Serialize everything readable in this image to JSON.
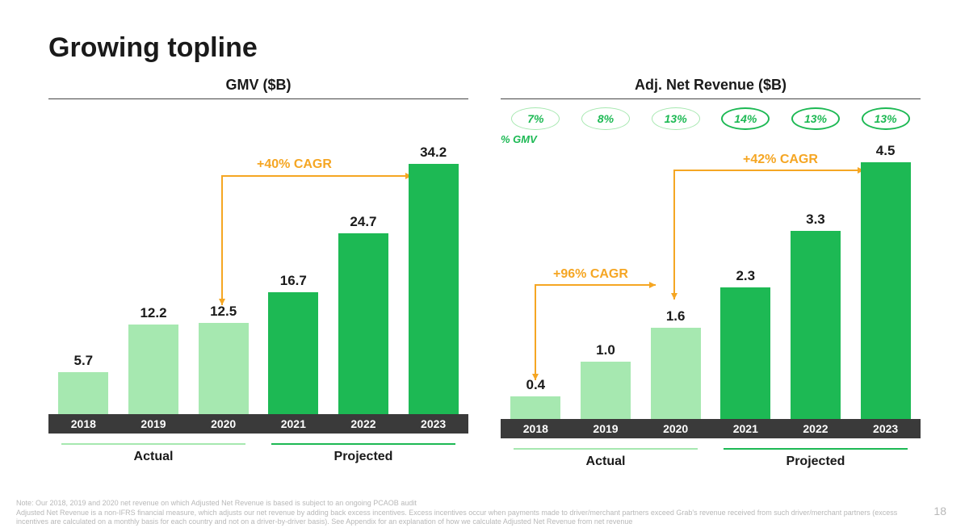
{
  "title": "Growing topline",
  "page_number": "18",
  "colors": {
    "light_green": "#a6e8b0",
    "dark_green": "#1db954",
    "orange": "#f5a623",
    "axis_bg": "#3a3a3a",
    "text": "#1a1a1a",
    "footnote": "#b8b8b8",
    "period_actual": "#a6e8b0",
    "period_projected": "#1db954"
  },
  "left_chart": {
    "title": "GMV ($B)",
    "type": "bar",
    "years": [
      "2018",
      "2019",
      "2020",
      "2021",
      "2022",
      "2023"
    ],
    "values": [
      5.7,
      12.2,
      12.5,
      16.7,
      24.7,
      34.2
    ],
    "value_labels": [
      "5.7",
      "12.2",
      "12.5",
      "16.7",
      "24.7",
      "34.2"
    ],
    "bar_colors": [
      "#a6e8b0",
      "#a6e8b0",
      "#a6e8b0",
      "#1db954",
      "#1db954",
      "#1db954"
    ],
    "ymax": 34.2,
    "cagr": {
      "label": "+40% CAGR",
      "color": "#f5a623"
    },
    "periods": [
      {
        "label": "Actual",
        "color": "#a6e8b0"
      },
      {
        "label": "Projected",
        "color": "#1db954"
      }
    ]
  },
  "right_chart": {
    "title": "Adj. Net Revenue ($B)",
    "type": "bar",
    "years": [
      "2018",
      "2019",
      "2020",
      "2021",
      "2022",
      "2023"
    ],
    "values": [
      0.4,
      1.0,
      1.6,
      2.3,
      3.3,
      4.5
    ],
    "value_labels": [
      "0.4",
      "1.0",
      "1.6",
      "2.3",
      "3.3",
      "4.5"
    ],
    "bar_colors": [
      "#a6e8b0",
      "#a6e8b0",
      "#a6e8b0",
      "#1db954",
      "#1db954",
      "#1db954"
    ],
    "ymax": 4.5,
    "percent_gmv": {
      "label": "% GMV",
      "values": [
        "7%",
        "8%",
        "13%",
        "14%",
        "13%",
        "13%"
      ],
      "border_colors": [
        "#a6e8b0",
        "#a6e8b0",
        "#a6e8b0",
        "#1db954",
        "#1db954",
        "#1db954"
      ],
      "text_color": "#1db954"
    },
    "cagr_main": {
      "label": "+42% CAGR",
      "color": "#f5a623"
    },
    "cagr_sub": {
      "label": "+96% CAGR",
      "color": "#f5a623"
    },
    "periods": [
      {
        "label": "Actual",
        "color": "#a6e8b0"
      },
      {
        "label": "Projected",
        "color": "#1db954"
      }
    ]
  },
  "footnote": {
    "line1": "Note: Our 2018, 2019 and 2020 net revenue on which Adjusted Net Revenue is based is subject to an ongoing PCAOB audit",
    "line2": "Adjusted Net Revenue is a non-IFRS financial measure, which adjusts our net revenue by adding back excess incentives. Excess incentives occur when payments made to driver/merchant partners exceed Grab's revenue received from such driver/merchant partners (excess incentives are calculated on a monthly basis for each country and not on a driver-by-driver basis). See Appendix for an explanation of how we calculate Adjusted Net Revenue from net revenue"
  }
}
